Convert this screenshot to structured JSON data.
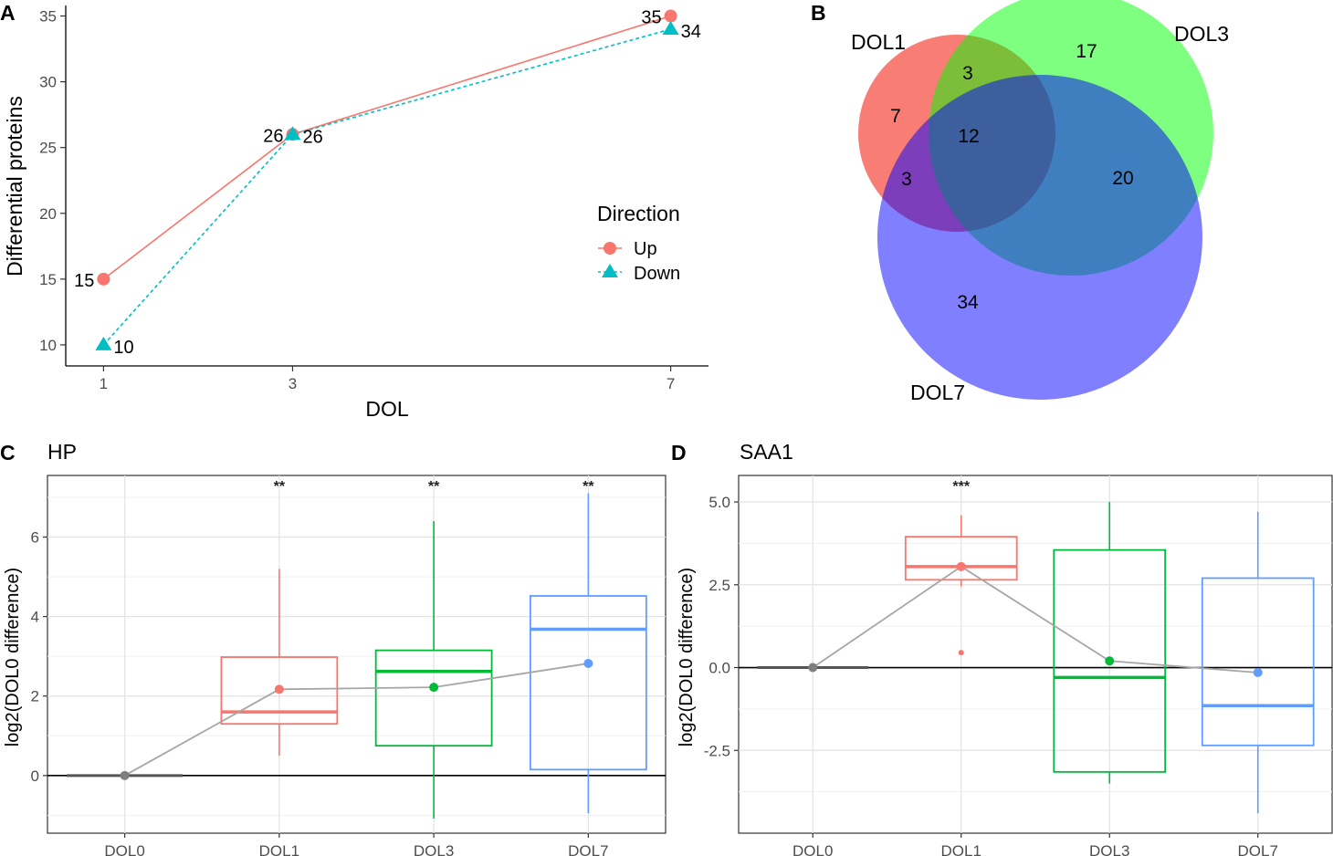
{
  "panels": {
    "a": "A",
    "b": "B",
    "c": "C",
    "d": "D"
  },
  "colors": {
    "up": "#f8766d",
    "down": "#00bfc4",
    "dol1": "#f8766d",
    "dol3": "#00ba38",
    "dol7": "#619cff",
    "dol0": "#7f7f7f",
    "mean_line": "#a6a6a6"
  },
  "chart_data": [
    {
      "id": "A",
      "type": "line",
      "xlabel": "DOL",
      "ylabel": "Differential proteins",
      "x": [
        1,
        3,
        7
      ],
      "xlim": [
        0.6,
        7.4
      ],
      "ylim": [
        8.4,
        35.8
      ],
      "yticks": [
        10,
        15,
        20,
        25,
        30,
        35
      ],
      "legend": {
        "title": "Direction",
        "position": "right"
      },
      "series": [
        {
          "name": "Up",
          "values": [
            15,
            26,
            35
          ],
          "labels": [
            "15",
            "26",
            "35"
          ]
        },
        {
          "name": "Down",
          "values": [
            10,
            26,
            34
          ],
          "labels": [
            "10",
            "26",
            "34"
          ]
        }
      ]
    },
    {
      "id": "B",
      "type": "venn",
      "sets": [
        "DOL1",
        "DOL3",
        "DOL7"
      ],
      "regions": {
        "dol1_only": "7",
        "dol3_only": "17",
        "dol7_only": "34",
        "dol1_dol3": "3",
        "dol1_dol7": "3",
        "dol3_dol7": "20",
        "all": "12"
      }
    },
    {
      "id": "C",
      "type": "box",
      "title": "HP",
      "ylabel": "log2(DOL0 difference)",
      "categories": [
        "DOL0",
        "DOL1",
        "DOL3",
        "DOL7"
      ],
      "ylim": [
        -1.45,
        7.55
      ],
      "yticks": [
        0,
        2,
        4,
        6
      ],
      "boxes": [
        {
          "q1": 0,
          "median": 0,
          "q3": 0,
          "wlow": 0,
          "whigh": 0
        },
        {
          "q1": 1.3,
          "median": 1.6,
          "q3": 2.98,
          "wlow": 0.5,
          "whigh": 5.2
        },
        {
          "q1": 0.75,
          "median": 2.62,
          "q3": 3.15,
          "wlow": -1.08,
          "whigh": 6.4
        },
        {
          "q1": 0.15,
          "median": 3.68,
          "q3": 4.52,
          "wlow": -0.95,
          "whigh": 7.1
        }
      ],
      "means": [
        0,
        2.17,
        2.22,
        2.82
      ],
      "outliers": [
        [],
        [],
        [],
        []
      ],
      "significance": [
        "",
        "**",
        "**",
        "**"
      ]
    },
    {
      "id": "D",
      "type": "box",
      "title": "SAA1",
      "ylabel": "log2(DOL0 difference)",
      "categories": [
        "DOL0",
        "DOL1",
        "DOL3",
        "DOL7"
      ],
      "ylim": [
        -5.0,
        5.8
      ],
      "yticks": [
        5.0,
        2.5,
        0.0,
        -2.5
      ],
      "ytick_labels": [
        "5.0",
        "2.5",
        "0.0",
        "-2.5"
      ],
      "boxes": [
        {
          "q1": 0,
          "median": 0,
          "q3": 0,
          "wlow": 0,
          "whigh": 0
        },
        {
          "q1": 2.65,
          "median": 3.05,
          "q3": 3.95,
          "wlow": 2.45,
          "whigh": 4.6
        },
        {
          "q1": -3.15,
          "median": -0.3,
          "q3": 3.55,
          "wlow": -3.5,
          "whigh": 5.0
        },
        {
          "q1": -2.35,
          "median": -1.15,
          "q3": 2.7,
          "wlow": -4.4,
          "whigh": 4.7
        }
      ],
      "means": [
        0,
        3.05,
        0.2,
        -0.15
      ],
      "outliers": [
        [],
        [
          0.45
        ],
        [],
        []
      ],
      "significance": [
        "",
        "***",
        "",
        ""
      ]
    }
  ]
}
